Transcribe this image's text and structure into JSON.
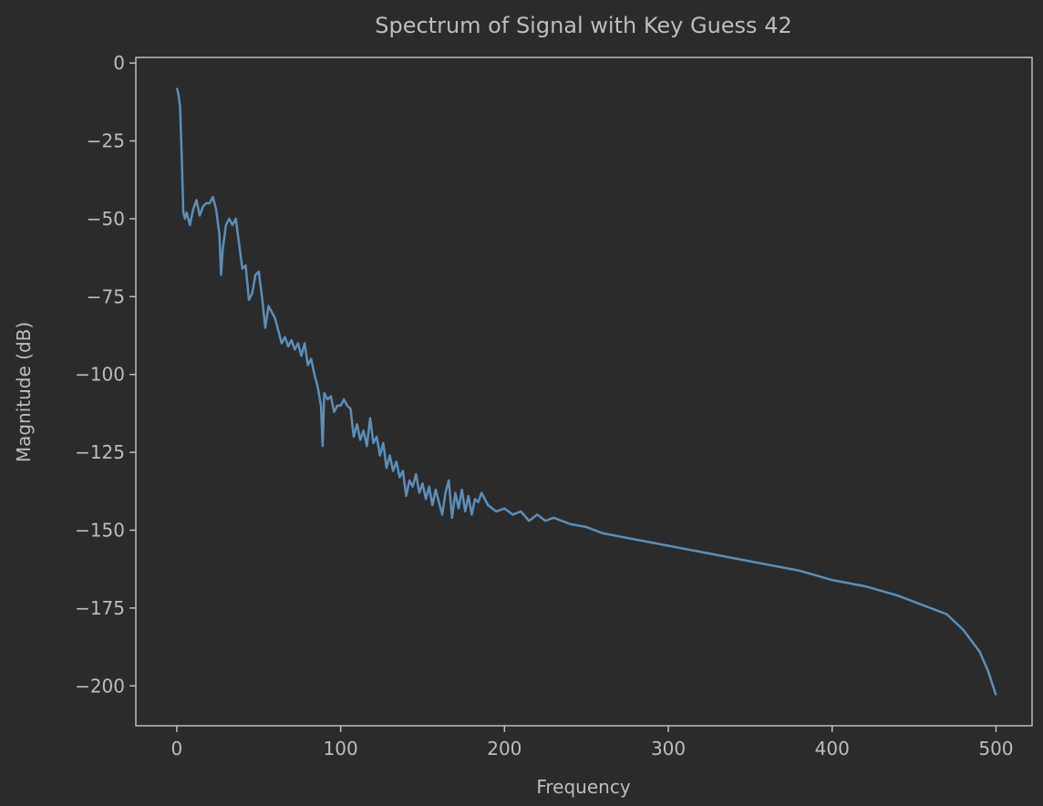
{
  "chart_data": {
    "type": "line",
    "title": "Spectrum of Signal with Key Guess 42",
    "x_label": "Frequency",
    "y_label": "Magnitude (dB)",
    "x": [
      0,
      1,
      2,
      3,
      4,
      5,
      6,
      8,
      10,
      12,
      14,
      16,
      18,
      20,
      22,
      24,
      26,
      27,
      28,
      30,
      32,
      34,
      36,
      38,
      40,
      42,
      44,
      46,
      48,
      50,
      52,
      54,
      56,
      58,
      60,
      62,
      64,
      66,
      68,
      70,
      72,
      74,
      76,
      78,
      80,
      82,
      84,
      86,
      88,
      89,
      90,
      92,
      94,
      96,
      98,
      100,
      102,
      104,
      106,
      108,
      110,
      112,
      114,
      116,
      118,
      120,
      122,
      124,
      126,
      128,
      130,
      132,
      134,
      136,
      138,
      140,
      142,
      144,
      146,
      148,
      150,
      152,
      154,
      156,
      158,
      160,
      162,
      164,
      166,
      168,
      170,
      172,
      174,
      176,
      178,
      180,
      182,
      184,
      186,
      190,
      195,
      200,
      205,
      210,
      215,
      220,
      225,
      230,
      240,
      250,
      260,
      270,
      280,
      290,
      300,
      320,
      340,
      360,
      380,
      400,
      420,
      440,
      460,
      470,
      480,
      490,
      495,
      500
    ],
    "series": [
      {
        "color": "#5b8fba",
        "values": [
          -8,
          -10,
          -14,
          -30,
          -48,
          -50,
          -48,
          -52,
          -47,
          -44,
          -49,
          -46,
          -45,
          -45,
          -43,
          -47,
          -55,
          -68,
          -60,
          -52,
          -50,
          -52,
          -50,
          -58,
          -66,
          -65,
          -76,
          -74,
          -68,
          -67,
          -75,
          -85,
          -78,
          -80,
          -82,
          -86,
          -90,
          -88,
          -91,
          -89,
          -92,
          -90,
          -94,
          -90,
          -97,
          -95,
          -100,
          -104,
          -110,
          -123,
          -106,
          -108,
          -107,
          -112,
          -110,
          -110,
          -108,
          -110,
          -111,
          -120,
          -116,
          -121,
          -118,
          -123,
          -114,
          -122,
          -120,
          -126,
          -122,
          -130,
          -126,
          -131,
          -128,
          -133,
          -131,
          -139,
          -134,
          -136,
          -132,
          -138,
          -135,
          -140,
          -136,
          -142,
          -137,
          -141,
          -145,
          -138,
          -134,
          -146,
          -138,
          -143,
          -137,
          -144,
          -139,
          -145,
          -140,
          -141,
          -138,
          -142,
          -144,
          -143,
          -145,
          -144,
          -147,
          -145,
          -147,
          -146,
          -148,
          -149,
          -151,
          -152,
          -153,
          -154,
          -155,
          -157,
          -159,
          -161,
          -163,
          -166,
          -168,
          -171,
          -175,
          -177,
          -182,
          -189,
          -195,
          -203
        ]
      }
    ],
    "xlim": [
      -25,
      522
    ],
    "ylim": [
      -212.8,
      1.8
    ],
    "xticks": [
      0,
      100,
      200,
      300,
      400,
      500
    ],
    "yticks": [
      0,
      {
        "value": -25,
        "label": "−25"
      },
      {
        "value": -50,
        "label": "−50"
      },
      {
        "value": -75,
        "label": "−75"
      },
      {
        "value": -100,
        "label": "−100"
      },
      {
        "value": -125,
        "label": "−125"
      },
      {
        "value": -150,
        "label": "−150"
      },
      {
        "value": -175,
        "label": "−175"
      },
      {
        "value": -200,
        "label": "−200"
      }
    ],
    "grid": false
  }
}
